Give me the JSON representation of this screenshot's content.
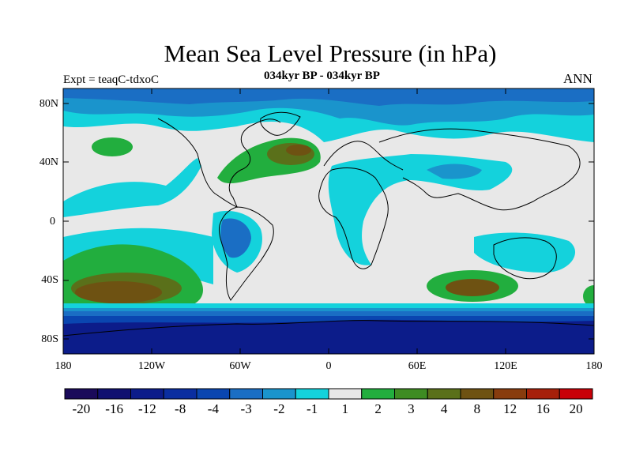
{
  "title": "Mean Sea Level Pressure (in hPa)",
  "subtitle": "034kyr BP - 034kyr BP",
  "expt_label": "Expt = teaqC-tdxoC",
  "season": "ANN",
  "lat_ticks": [
    "80N",
    "40N",
    "0",
    "40S",
    "80S"
  ],
  "lon_ticks": [
    "180",
    "120W",
    "60W",
    "0",
    "60E",
    "120E",
    "180"
  ],
  "colorbar": {
    "colors": [
      "#1a0a5a",
      "#101070",
      "#0c1c8a",
      "#0a2ea0",
      "#0a46b0",
      "#1a6ec4",
      "#1a94cc",
      "#14d2dc",
      "#e8e8e8",
      "#22ae3e",
      "#3e8c22",
      "#5a701a",
      "#6e5212",
      "#883c0e",
      "#a6200a",
      "#c80008"
    ],
    "labels": [
      "-20",
      "-16",
      "-12",
      "-8",
      "-4",
      "-3",
      "-2",
      "-1",
      "1",
      "2",
      "3",
      "4",
      "8",
      "12",
      "16",
      "20"
    ]
  },
  "fill_colors": {
    "neutral": "#e8e8e8",
    "cyan": "#14d2dc",
    "mid_blue": "#1a94cc",
    "blue": "#1a6ec4",
    "dark_blue": "#0a46b0",
    "navy": "#0c1c8a",
    "green": "#22ae3e",
    "olive": "#5a701a",
    "brown": "#6e5212"
  }
}
